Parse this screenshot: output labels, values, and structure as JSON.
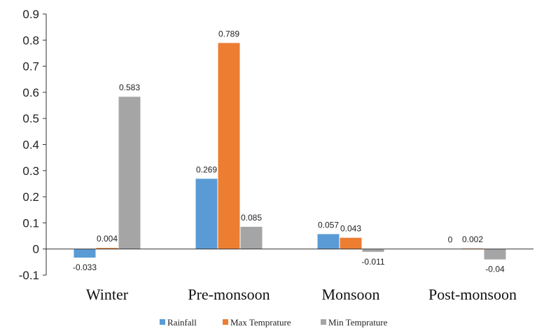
{
  "chart_data": {
    "type": "bar",
    "title": "",
    "xlabel": "",
    "ylabel": "",
    "ylim": [
      -0.1,
      0.9
    ],
    "yticks": [
      -0.1,
      0,
      0.1,
      0.2,
      0.3,
      0.4,
      0.5,
      0.6,
      0.7,
      0.8,
      0.9
    ],
    "ytick_labels": [
      "-0.1",
      "0",
      "0.1",
      "0.2",
      "0.3",
      "0.4",
      "0.5",
      "0.6",
      "0.7",
      "0.8",
      "0.9"
    ],
    "categories": [
      "Winter",
      "Pre-monsoon",
      "Monsoon",
      "Post-monsoon"
    ],
    "series": [
      {
        "name": "Rainfall",
        "color": "#5B9BD5",
        "values": [
          -0.033,
          0.269,
          0.057,
          0
        ],
        "labels": [
          "-0.033",
          "0.269",
          "0.057",
          "0"
        ]
      },
      {
        "name": "Max Temprature",
        "color": "#ED7D31",
        "values": [
          0.004,
          0.789,
          0.043,
          0.002
        ],
        "labels": [
          "0.004",
          "0.789",
          "0.043",
          "0.002"
        ]
      },
      {
        "name": "Min Temprature",
        "color": "#A5A5A5",
        "values": [
          0.583,
          0.085,
          -0.011,
          -0.04
        ],
        "labels": [
          "0.583",
          "0.085",
          "-0.011",
          "-0.04"
        ]
      }
    ],
    "grid": false,
    "legend": "bottom"
  }
}
